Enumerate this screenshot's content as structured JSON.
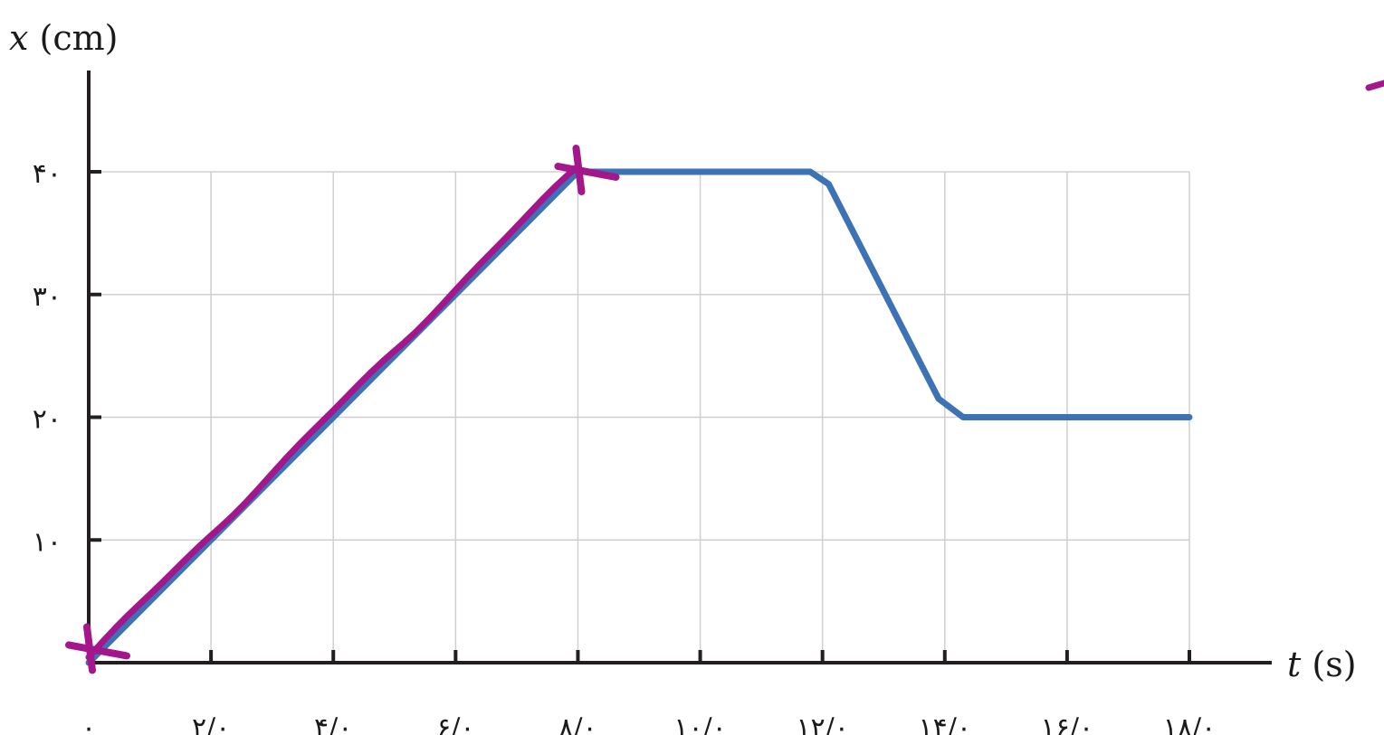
{
  "chart_data": {
    "type": "line",
    "xlabel_var": "t",
    "xlabel_unit": "(s)",
    "ylabel_var": "x",
    "ylabel_unit": "(cm)",
    "xlim": [
      0,
      18
    ],
    "ylim": [
      0,
      40
    ],
    "grid": true,
    "x_ticks": [
      {
        "value": 0,
        "label": "۰"
      },
      {
        "value": 2,
        "label": "۲/۰"
      },
      {
        "value": 4,
        "label": "۴/۰"
      },
      {
        "value": 6,
        "label": "۶/۰"
      },
      {
        "value": 8,
        "label": "۸/۰"
      },
      {
        "value": 10,
        "label": "۱۰/۰"
      },
      {
        "value": 12,
        "label": "۱۲/۰"
      },
      {
        "value": 14,
        "label": "۱۴/۰"
      },
      {
        "value": 16,
        "label": "۱۶/۰"
      },
      {
        "value": 18,
        "label": "۱۸/۰"
      }
    ],
    "y_ticks": [
      {
        "value": 10,
        "label": "۱۰"
      },
      {
        "value": 20,
        "label": "۲۰"
      },
      {
        "value": 30,
        "label": "۳۰"
      },
      {
        "value": 40,
        "label": "۴۰"
      }
    ],
    "series": [
      {
        "color": "#3d72b4",
        "x": [
          0,
          8,
          11.8,
          12.1,
          13.9,
          14.3,
          18
        ],
        "y": [
          0,
          40,
          40,
          39,
          21.5,
          20,
          20
        ]
      }
    ],
    "annotations": {
      "color": "#a3168c",
      "handdrawn_line": {
        "x": [
          0,
          8
        ],
        "y": [
          0,
          40
        ]
      },
      "cross_marks": [
        {
          "x": 0,
          "y": 1
        },
        {
          "x": 8,
          "y": 40
        }
      ]
    }
  }
}
